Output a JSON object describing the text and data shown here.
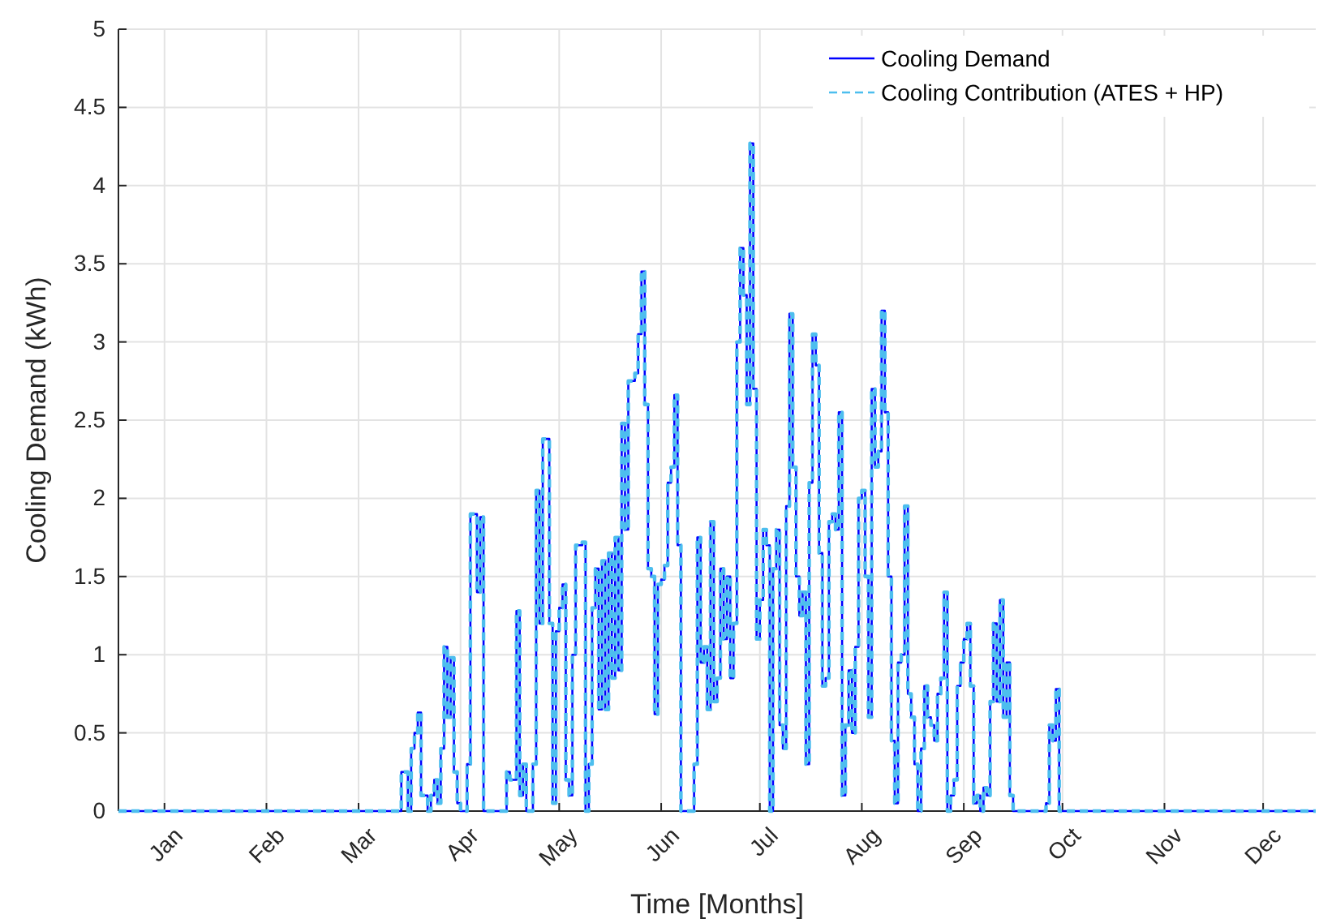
{
  "chart_data": {
    "type": "step",
    "xlabel": "Time [Months]",
    "ylabel": "Cooling Demand (kWh)",
    "x": [
      "--01-01",
      "--03-28",
      "--03-30",
      "--03-31",
      "--04-01",
      "--04-02",
      "--04-03",
      "--04-05",
      "--04-06",
      "--04-07",
      "--04-08",
      "--04-09",
      "--04-10",
      "--04-11",
      "--04-12",
      "--04-13",
      "--04-14",
      "--04-15",
      "--04-17",
      "--04-18",
      "--04-20",
      "--04-21",
      "--04-22",
      "--04-29",
      "--04-30",
      "--05-02",
      "--05-03",
      "--05-04",
      "--05-05",
      "--05-07",
      "--05-08",
      "--05-09",
      "--05-10",
      "--05-12",
      "--05-13",
      "--05-14",
      "--05-15",
      "--05-16",
      "--05-17",
      "--05-18",
      "--05-19",
      "--05-20",
      "--05-22",
      "--05-23",
      "--05-24",
      "--05-25",
      "--05-26",
      "--05-27",
      "--05-28",
      "--05-29",
      "--05-30",
      "--05-31",
      "--06-01",
      "--06-02",
      "--06-03",
      "--06-04",
      "--06-05",
      "--06-07",
      "--06-08",
      "--06-09",
      "--06-10",
      "--06-11",
      "--06-12",
      "--06-13",
      "--06-14",
      "--06-15",
      "--06-16",
      "--06-17",
      "--06-18",
      "--06-19",
      "--06-20",
      "--06-21",
      "--06-25",
      "--06-26",
      "--06-27",
      "--06-28",
      "--06-29",
      "--06-30",
      "--07-01",
      "--07-02",
      "--07-03",
      "--07-04",
      "--07-05",
      "--07-06",
      "--07-07",
      "--07-08",
      "--07-09",
      "--07-10",
      "--07-11",
      "--07-12",
      "--07-13",
      "--07-14",
      "--07-15",
      "--07-16",
      "--07-17",
      "--07-18",
      "--07-19",
      "--07-20",
      "--07-21",
      "--07-22",
      "--07-23",
      "--07-24",
      "--07-25",
      "--07-26",
      "--07-27",
      "--07-28",
      "--07-29",
      "--07-30",
      "--07-31",
      "--08-01",
      "--08-02",
      "--08-03",
      "--08-04",
      "--08-05",
      "--08-06",
      "--08-07",
      "--08-08",
      "--08-09",
      "--08-10",
      "--08-11",
      "--08-12",
      "--08-13",
      "--08-14",
      "--08-15",
      "--08-16",
      "--08-17",
      "--08-18",
      "--08-19",
      "--08-20",
      "--08-21",
      "--08-22",
      "--08-23",
      "--08-24",
      "--08-25",
      "--08-26",
      "--08-27",
      "--08-28",
      "--08-29",
      "--08-30",
      "--08-31",
      "--09-01",
      "--09-02",
      "--09-03",
      "--09-04",
      "--09-05",
      "--09-06",
      "--09-07",
      "--09-08",
      "--09-09",
      "--09-10",
      "--09-11",
      "--09-12",
      "--09-13",
      "--09-14",
      "--09-15",
      "--09-16",
      "--09-17",
      "--09-18",
      "--09-19",
      "--09-20",
      "--09-21",
      "--09-22",
      "--09-23",
      "--09-24",
      "--09-25",
      "--09-26",
      "--09-27",
      "--09-28",
      "--09-29",
      "--09-30",
      "--10-10",
      "--10-11",
      "--10-12",
      "--10-13",
      "--10-14",
      "--12-31"
    ],
    "series": [
      {
        "name": "Cooling Demand",
        "color": "#0000ff",
        "line_style": "solid",
        "values": [
          0,
          0.25,
          0,
          0.4,
          0.5,
          0.63,
          0.1,
          0,
          0.1,
          0.2,
          0.05,
          0.4,
          1.05,
          0.6,
          0.98,
          0.25,
          0.05,
          0,
          0.3,
          1.9,
          1.4,
          1.88,
          0,
          0.25,
          0.2,
          1.28,
          0.1,
          0.3,
          0,
          0.3,
          2.05,
          1.2,
          2.38,
          1.2,
          0.05,
          1.15,
          1.3,
          1.45,
          0.2,
          0.1,
          1.0,
          1.7,
          1.72,
          0,
          0.3,
          1.3,
          1.55,
          0.65,
          1.6,
          0.65,
          1.65,
          0.85,
          1.75,
          0.9,
          2.48,
          1.8,
          2.75,
          2.8,
          3.05,
          3.45,
          2.6,
          1.55,
          1.5,
          0.62,
          1.45,
          1.48,
          1.57,
          2.1,
          2.2,
          2.66,
          1.7,
          0,
          0.3,
          1.75,
          0.95,
          1.05,
          0.65,
          1.85,
          0.7,
          0.85,
          1.55,
          1.1,
          1.5,
          0.85,
          1.2,
          3.0,
          3.6,
          3.3,
          2.6,
          4.27,
          2.7,
          1.1,
          1.35,
          1.8,
          1.7,
          0,
          1.55,
          1.8,
          0.55,
          0.4,
          1.95,
          3.18,
          2.2,
          1.5,
          1.25,
          1.4,
          0.3,
          2.1,
          3.05,
          2.85,
          1.65,
          0.8,
          0.85,
          1.85,
          1.9,
          1.8,
          2.55,
          0.1,
          0.55,
          0.9,
          0.5,
          1.05,
          2.0,
          2.05,
          1.5,
          0.6,
          2.7,
          2.2,
          2.3,
          3.2,
          2.55,
          1.5,
          0.45,
          0.05,
          0.95,
          1.0,
          1.95,
          0.75,
          0.6,
          0.3,
          0,
          0.4,
          0.8,
          0.6,
          0.55,
          0.45,
          0.75,
          0.85,
          1.4,
          0,
          0.1,
          0.2,
          0.8,
          0.95,
          1.1,
          1.2,
          0.8,
          0.05,
          0.1,
          0,
          0.15,
          0.1,
          0.7,
          1.2,
          0.7,
          1.35,
          0.6,
          0.95,
          0.1,
          0,
          0.05,
          0.55,
          0.45,
          0.78,
          0,
          0
        ]
      },
      {
        "name": "Cooling Contribution (ATES + HP)",
        "color": "#4dbeee",
        "line_style": "dashed",
        "values": [
          0,
          0.25,
          0,
          0.4,
          0.5,
          0.63,
          0.1,
          0,
          0.1,
          0.2,
          0.05,
          0.4,
          1.05,
          0.6,
          0.98,
          0.25,
          0.05,
          0,
          0.3,
          1.9,
          1.4,
          1.88,
          0,
          0.25,
          0.2,
          1.28,
          0.1,
          0.3,
          0,
          0.3,
          2.05,
          1.2,
          2.38,
          1.2,
          0.05,
          1.15,
          1.3,
          1.45,
          0.2,
          0.1,
          1.0,
          1.7,
          1.72,
          0,
          0.3,
          1.3,
          1.55,
          0.65,
          1.6,
          0.65,
          1.65,
          0.85,
          1.75,
          0.9,
          2.48,
          1.8,
          2.75,
          2.8,
          3.05,
          3.45,
          2.6,
          1.55,
          1.5,
          0.62,
          1.45,
          1.48,
          1.57,
          2.1,
          2.2,
          2.66,
          1.7,
          0,
          0.3,
          1.75,
          0.95,
          1.05,
          0.65,
          1.85,
          0.7,
          0.85,
          1.55,
          1.1,
          1.5,
          0.85,
          1.2,
          3.0,
          3.6,
          3.3,
          2.6,
          4.27,
          2.7,
          1.1,
          1.35,
          1.8,
          1.7,
          0,
          1.55,
          1.8,
          0.55,
          0.4,
          1.95,
          3.18,
          2.2,
          1.5,
          1.25,
          1.4,
          0.3,
          2.1,
          3.05,
          2.85,
          1.65,
          0.8,
          0.85,
          1.85,
          1.9,
          1.8,
          2.55,
          0.1,
          0.55,
          0.9,
          0.5,
          1.05,
          2.0,
          2.05,
          1.5,
          0.6,
          2.7,
          2.2,
          2.3,
          3.2,
          2.55,
          1.5,
          0.45,
          0.05,
          0.95,
          1.0,
          1.95,
          0.75,
          0.6,
          0.3,
          0,
          0.4,
          0.8,
          0.6,
          0.55,
          0.45,
          0.75,
          0.85,
          1.4,
          0,
          0.1,
          0.2,
          0.8,
          0.95,
          1.1,
          1.2,
          0.8,
          0.05,
          0.1,
          0,
          0.15,
          0.1,
          0.7,
          1.2,
          0.7,
          1.35,
          0.6,
          0.95,
          0.1,
          0,
          0.05,
          0.55,
          0.45,
          0.78,
          0,
          0
        ]
      }
    ],
    "xlim": [
      "--01-01",
      "--12-31"
    ],
    "xticks": [
      {
        "value": "--01-15",
        "label": "Jan"
      },
      {
        "value": "--02-15",
        "label": "Feb"
      },
      {
        "value": "--03-15",
        "label": "Mar"
      },
      {
        "value": "--04-15",
        "label": "Apr"
      },
      {
        "value": "--05-15",
        "label": "May"
      },
      {
        "value": "--06-15",
        "label": "Jun"
      },
      {
        "value": "--07-15",
        "label": "Jul"
      },
      {
        "value": "--08-15",
        "label": "Aug"
      },
      {
        "value": "--09-15",
        "label": "Sep"
      },
      {
        "value": "--10-15",
        "label": "Oct"
      },
      {
        "value": "--11-15",
        "label": "Nov"
      },
      {
        "value": "--12-15",
        "label": "Dec"
      }
    ],
    "ylim": [
      0,
      5
    ],
    "yticks": [
      0,
      0.5,
      1,
      1.5,
      2,
      2.5,
      3,
      3.5,
      4,
      4.5,
      5
    ],
    "grid": true,
    "legend": "top right"
  }
}
